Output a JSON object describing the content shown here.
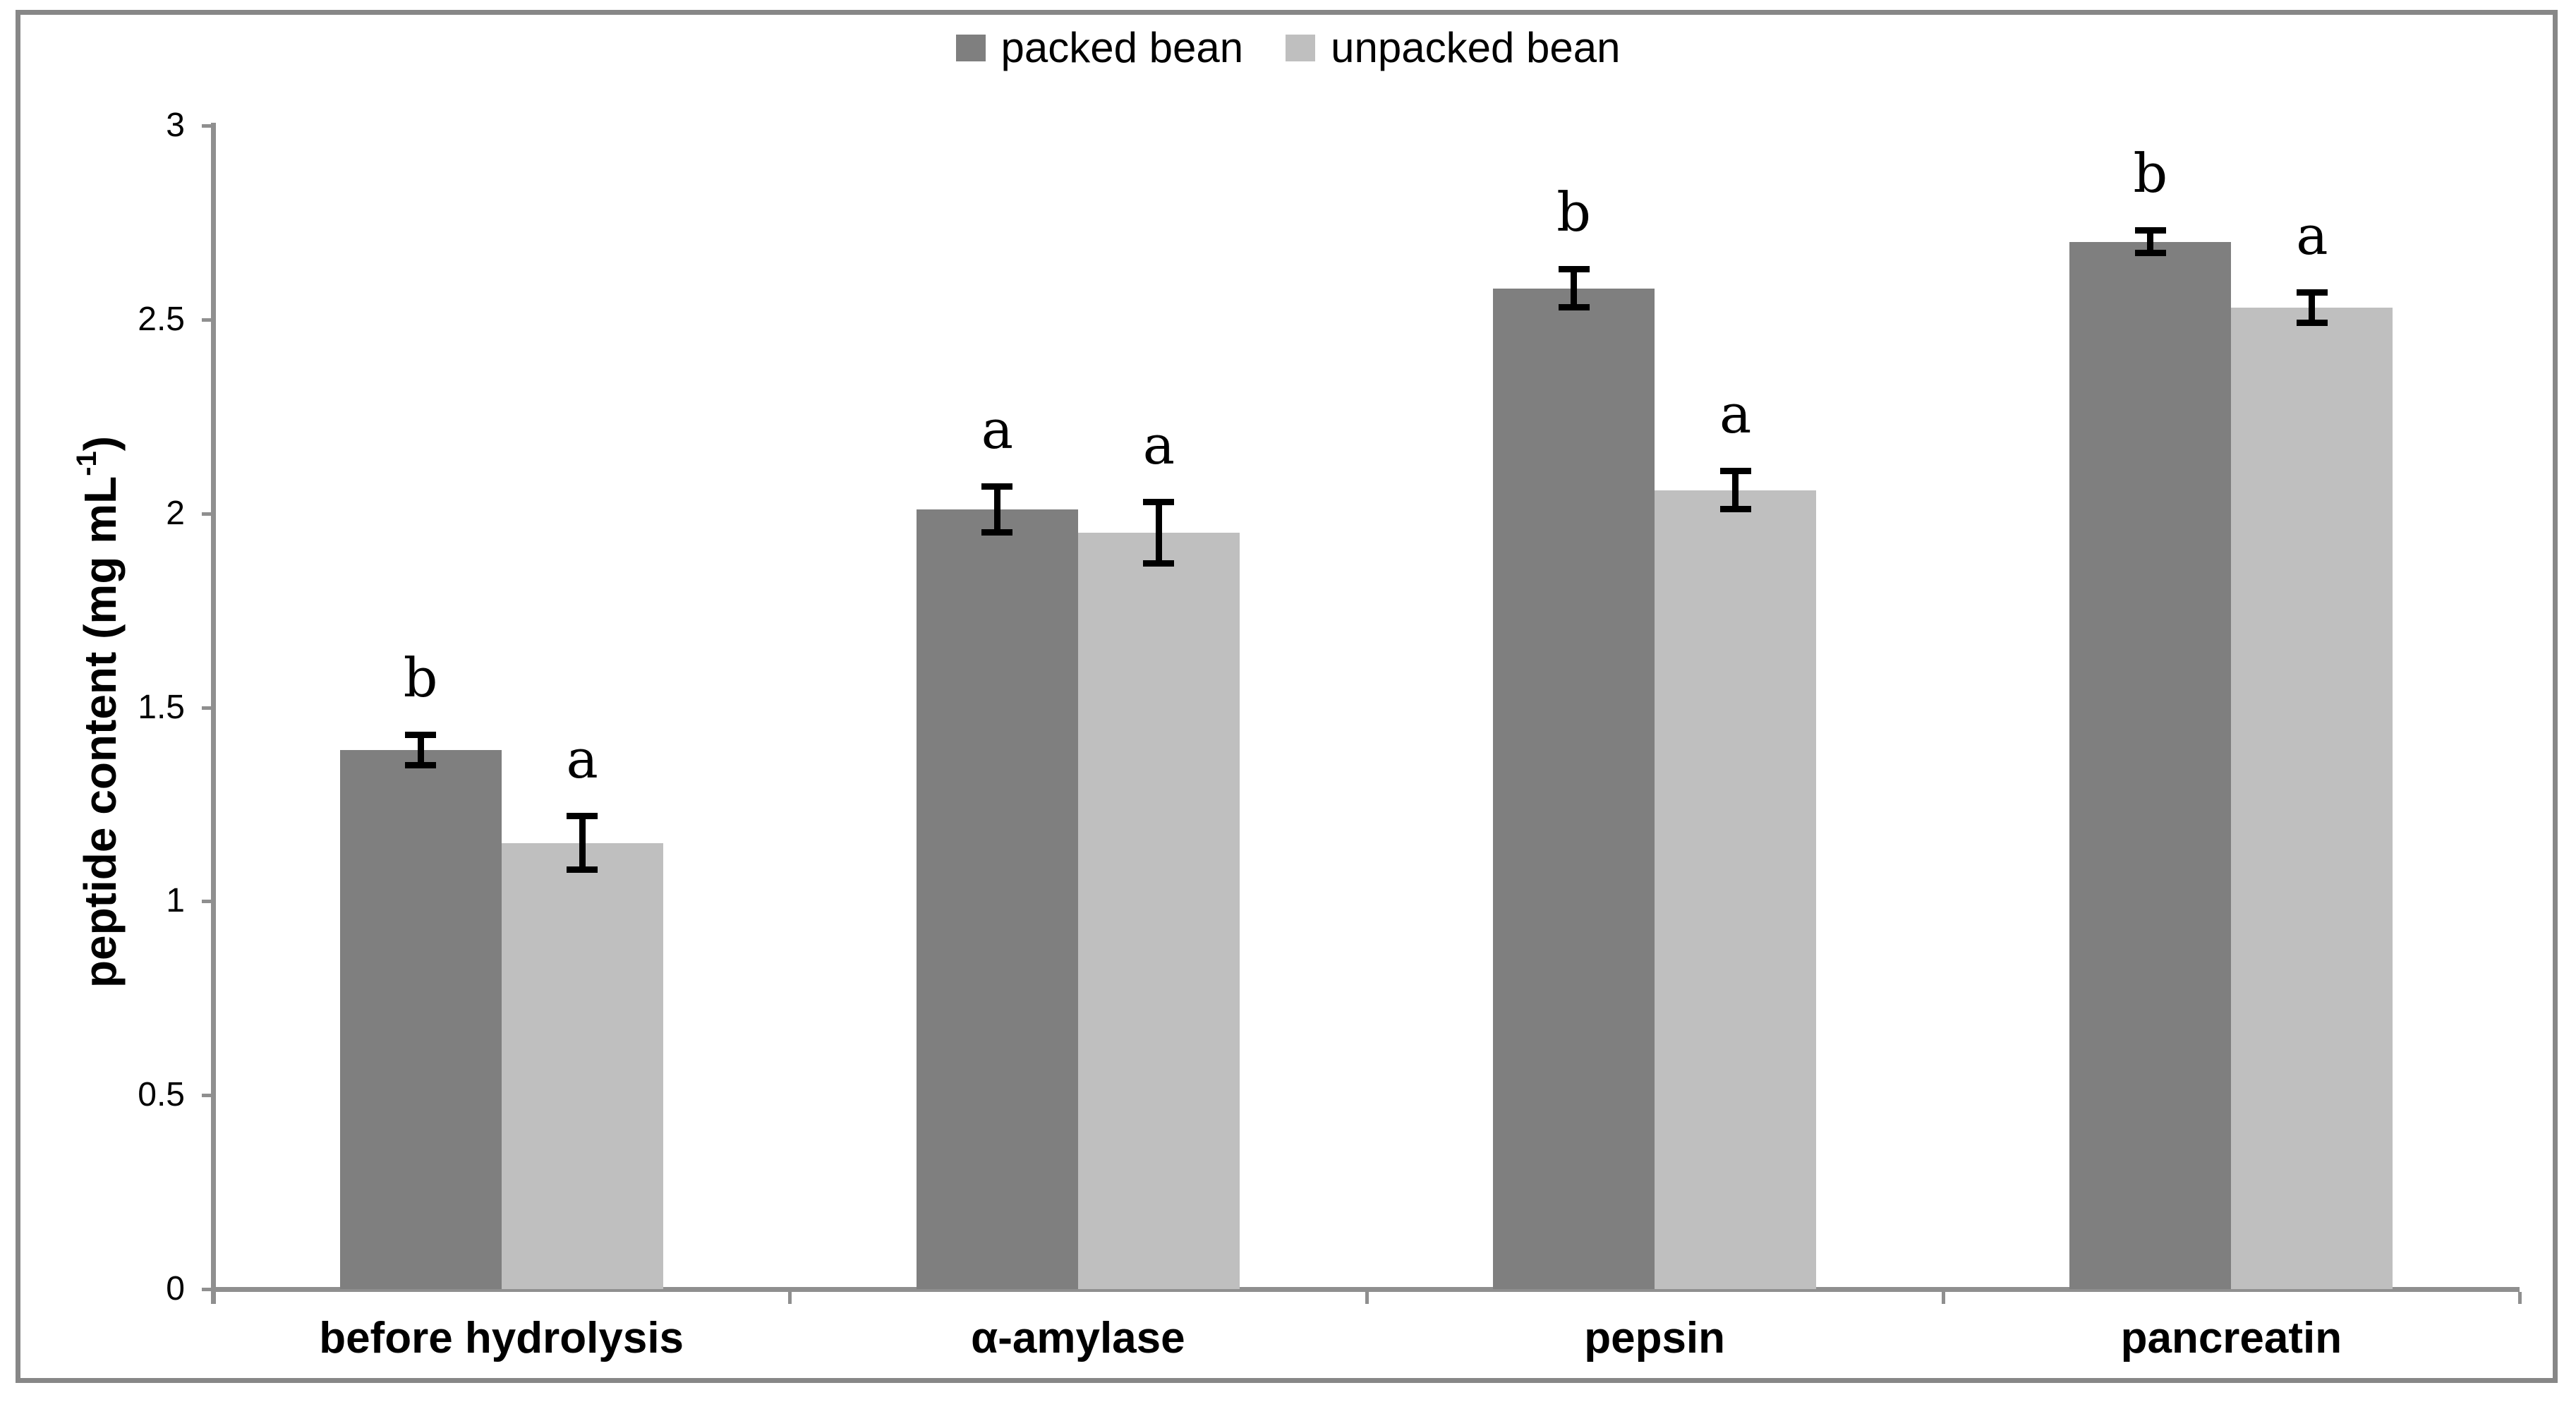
{
  "figure": {
    "background": "#ffffff",
    "border_color": "#878787",
    "axis_color": "#8f8f8f"
  },
  "chart_data": {
    "type": "bar",
    "title": "",
    "xlabel": "",
    "ylabel": {
      "base": "peptide content (mg mL",
      "sup": "-1",
      "close": ")",
      "full_text": "peptide content (mg mL-1)"
    },
    "ylim": [
      0,
      3
    ],
    "ytick_step": 0.5,
    "ytick_labels": [
      "0",
      "0.5",
      "1",
      "1.5",
      "2",
      "2.5",
      "3"
    ],
    "grid": false,
    "legend_position": "top-center",
    "error_bar_color": "#000000",
    "categories": [
      "before hydrolysis",
      "α-amylase",
      "pepsin",
      "pancreatin"
    ],
    "series": [
      {
        "name": "packed bean",
        "color": "#7f7f7f",
        "values": [
          1.39,
          2.01,
          2.58,
          2.7
        ],
        "errors": [
          0.04,
          0.06,
          0.05,
          0.03
        ],
        "letters": [
          "b",
          "a",
          "b",
          "b"
        ]
      },
      {
        "name": "unpacked bean",
        "color": "#bfbfbf",
        "values": [
          1.15,
          1.95,
          2.06,
          2.53
        ],
        "errors": [
          0.07,
          0.08,
          0.05,
          0.04
        ],
        "letters": [
          "a",
          "a",
          "a",
          "a"
        ]
      }
    ]
  }
}
